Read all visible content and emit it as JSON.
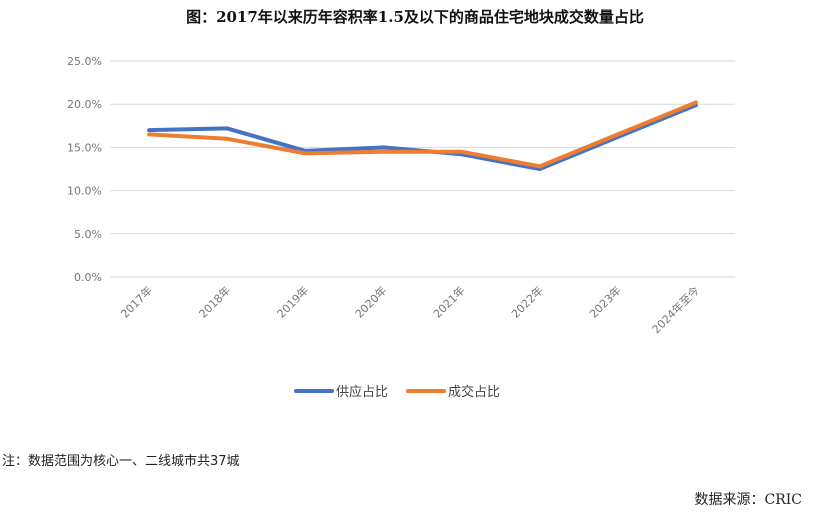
{
  "title": "图：2017年以来历年容积率1.5及以下的商品住宅地块成交数量占比",
  "note": "注：数据范围为核心一、二线城市共37城",
  "source": "数据来源：CRIC",
  "chart_data": {
    "type": "line",
    "title": "图：2017年以来历年容积率1.5及以下的商品住宅地块成交数量占比",
    "categories": [
      "2017年",
      "2018年",
      "2019年",
      "2020年",
      "2021年",
      "2022年",
      "2023年",
      "2024年至今"
    ],
    "y_tick_labels": [
      "0.0%",
      "5.0%",
      "10.0%",
      "15.0%",
      "20.0%",
      "25.0%"
    ],
    "ylim": [
      0,
      25
    ],
    "grid": true,
    "legend_position": "bottom",
    "series": [
      {
        "name": "供应占比",
        "color": "#4472C4",
        "values": [
          17.0,
          17.2,
          14.6,
          15.0,
          14.2,
          12.5,
          16.2,
          19.9
        ]
      },
      {
        "name": "成交占比",
        "color": "#ED7D31",
        "values": [
          16.5,
          16.0,
          14.3,
          14.5,
          14.5,
          12.8,
          16.5,
          20.2
        ]
      }
    ]
  }
}
